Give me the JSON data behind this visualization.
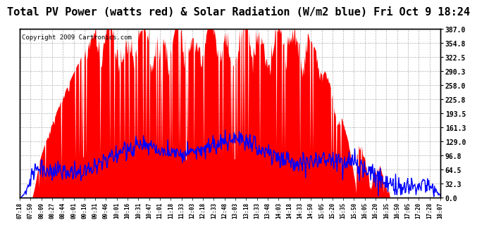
{
  "title": "Total PV Power (watts red) & Solar Radiation (W/m2 blue) Fri Oct 9 18:24",
  "copyright": "Copyright 2009 Cartronics.com",
  "ylabel_right_ticks": [
    0.0,
    32.3,
    64.5,
    96.8,
    129.0,
    161.3,
    193.5,
    225.8,
    258.0,
    290.3,
    322.5,
    354.8,
    387.0
  ],
  "ymax": 387.0,
  "ymin": 0.0,
  "x_labels": [
    "07:18",
    "07:50",
    "08:09",
    "08:27",
    "08:44",
    "09:01",
    "09:16",
    "09:31",
    "09:46",
    "10:01",
    "10:16",
    "10:31",
    "10:47",
    "11:01",
    "11:18",
    "11:33",
    "12:03",
    "12:18",
    "12:33",
    "12:48",
    "13:03",
    "13:18",
    "13:33",
    "13:48",
    "14:03",
    "14:18",
    "14:33",
    "14:50",
    "15:05",
    "15:20",
    "15:35",
    "15:50",
    "16:05",
    "16:20",
    "16:35",
    "16:50",
    "17:05",
    "17:20",
    "17:28",
    "18:07"
  ],
  "pv_color": "#ff0000",
  "solar_color": "#0000ff",
  "background_color": "#ffffff",
  "plot_bg_color": "#ffffff",
  "grid_color": "#b0b0b0",
  "title_fontsize": 11,
  "copyright_fontsize": 6.5
}
